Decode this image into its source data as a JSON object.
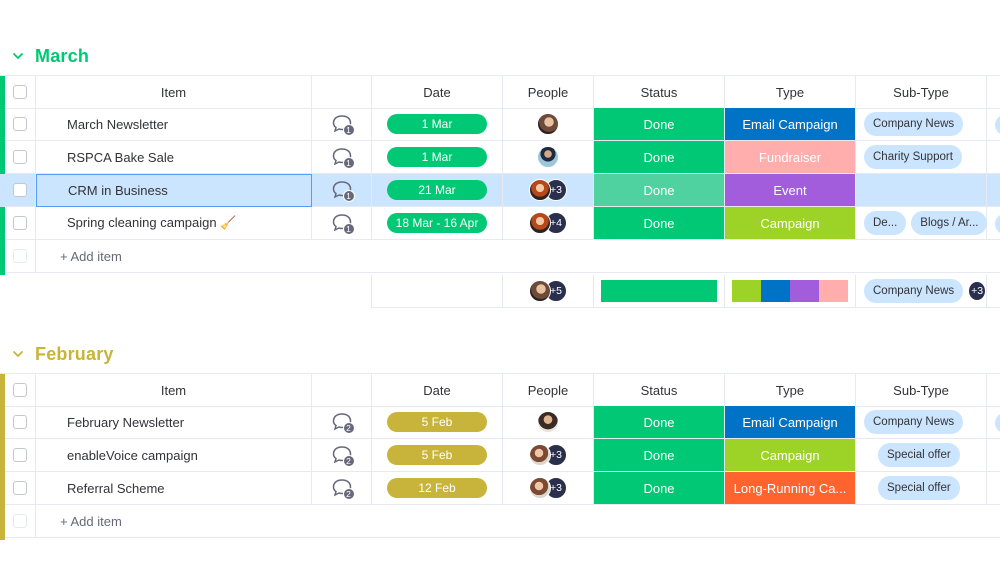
{
  "colors": {
    "march": "#00c875",
    "february": "#c9b43b",
    "done": "#00c875",
    "email_campaign": "#0073c7",
    "fundraiser": "#ffadad",
    "event": "#a25ddc",
    "campaign": "#9cd326",
    "long_running": "#ff642e",
    "selected_row": "#cce5ff",
    "date_feb": "#c9b43b",
    "date_mar": "#00c875"
  },
  "columns": {
    "item": "Item",
    "date": "Date",
    "people": "People",
    "status": "Status",
    "type": "Type",
    "subtype": "Sub-Type"
  },
  "march": {
    "title": "March",
    "rows": [
      {
        "name": "March Newsletter",
        "chat": "1",
        "date": "1 Mar",
        "status": "Done",
        "type": "Email Campaign",
        "subtypes": [
          "Company News"
        ]
      },
      {
        "name": "RSPCA Bake Sale",
        "chat": "1",
        "date": "1 Mar",
        "status": "Done",
        "type": "Fundraiser",
        "subtypes": [
          "Charity Support"
        ]
      },
      {
        "name": "CRM in Business",
        "chat": "1",
        "date": "21 Mar",
        "status": "Done",
        "type": "Event",
        "subtypes": [],
        "more": "+3"
      },
      {
        "name": "Spring cleaning campaign 🧹",
        "chat": "1",
        "date": "18 Mar - 16 Apr",
        "status": "Done",
        "type": "Campaign",
        "subtypes": [
          "De...",
          "Blogs / Ar..."
        ],
        "more": "+4"
      }
    ],
    "add_item": "+ Add item",
    "summary": {
      "people_more": "+5",
      "subtype": "Company News",
      "subtype_more": "+3"
    }
  },
  "february": {
    "title": "February",
    "rows": [
      {
        "name": "February Newsletter",
        "chat": "2",
        "date": "5 Feb",
        "status": "Done",
        "type": "Email Campaign",
        "subtypes": [
          "Company News"
        ]
      },
      {
        "name": "enableVoice campaign",
        "chat": "2",
        "date": "5 Feb",
        "status": "Done",
        "type": "Campaign",
        "subtypes": [
          "Special offer"
        ],
        "more": "+3"
      },
      {
        "name": "Referral Scheme",
        "chat": "2",
        "date": "12 Feb",
        "status": "Done",
        "type": "Long-Running Ca...",
        "subtypes": [
          "Special offer"
        ],
        "more": "+3"
      }
    ],
    "add_item": "+ Add item"
  }
}
